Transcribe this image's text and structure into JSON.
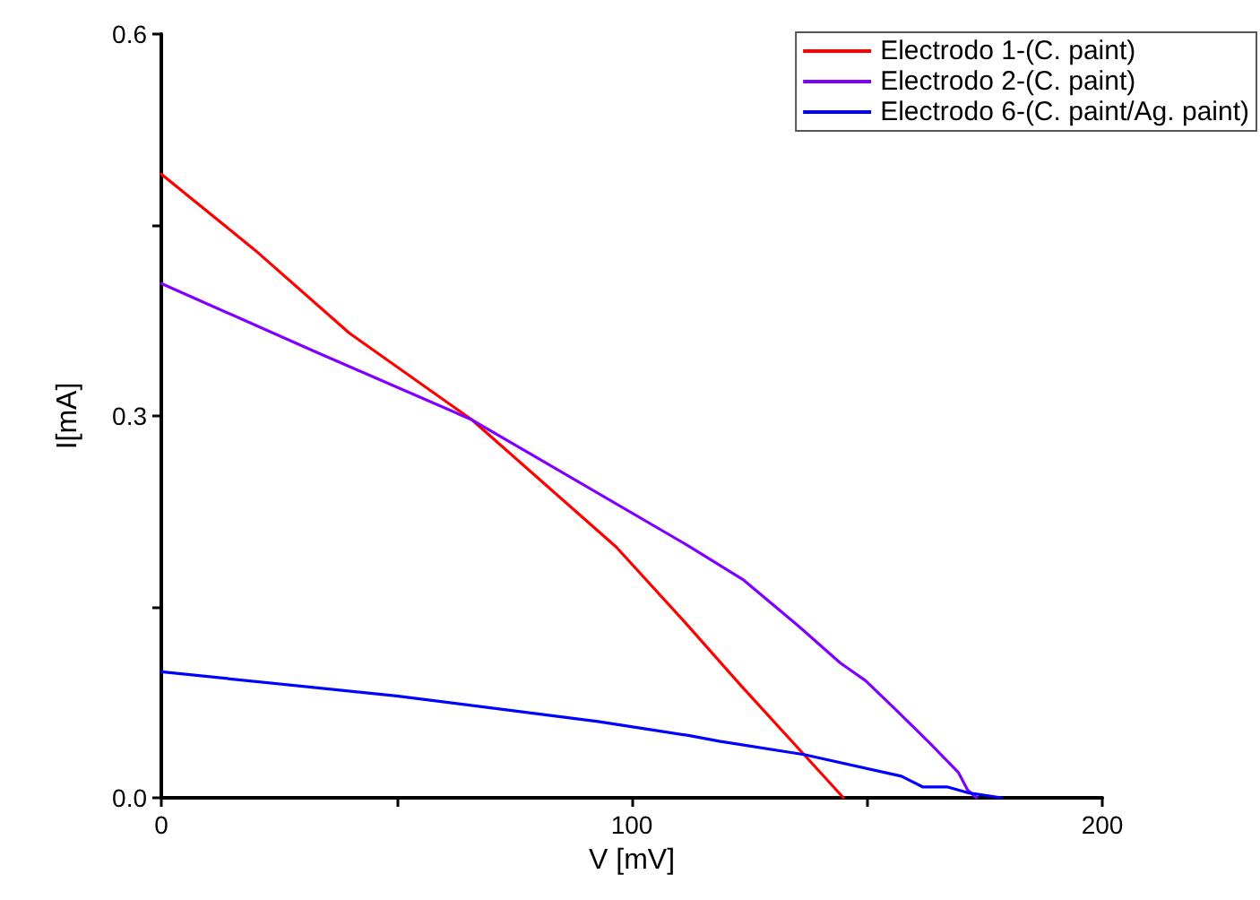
{
  "chart_data": {
    "type": "line",
    "xlabel": "V [mV]",
    "ylabel": "I[mA]",
    "xlim": [
      0,
      200
    ],
    "ylim": [
      0,
      0.6
    ],
    "xticks": [
      0,
      {
        "value": 50,
        "label": null
      },
      100,
      {
        "value": 150,
        "label": null
      },
      200
    ],
    "yticks": [
      {
        "value": 0,
        "label": "0.0"
      },
      {
        "value": 0.15,
        "label": null
      },
      0.3,
      {
        "value": 0.45,
        "label": null
      },
      0.6
    ],
    "grid": false,
    "legend": "top right",
    "marker": "none",
    "line_style": "solid",
    "series": [
      {
        "name": "Electrodo 1-(C. paint)",
        "color": "#ff0000",
        "x": [
          0,
          20,
          40,
          66,
          96.7,
          112,
          123,
          136.6,
          145
        ],
        "values": [
          0.49,
          0.43,
          0.365,
          0.297,
          0.197,
          0.135,
          0.089,
          0.034,
          0
        ]
      },
      {
        "name": "Electrodo 2-(C. paint)",
        "color": "#8000ff",
        "x": [
          0,
          33,
          66,
          112,
          123.8,
          135.4,
          144.3,
          149.7,
          155.9,
          163.6,
          169.4,
          171.4,
          173.3
        ],
        "values": [
          0.404,
          0.35,
          0.297,
          0.198,
          0.171,
          0.135,
          0.106,
          0.092,
          0.07,
          0.042,
          0.02,
          0.006,
          0
        ]
      },
      {
        "name": "Electrodo 6-(C. paint/Ag. paint)",
        "color": "#0000ff",
        "x": [
          0,
          50,
          92.8,
          112,
          118.6,
          136.6,
          157.3,
          161.8,
          167,
          171.4,
          178.6
        ],
        "values": [
          0.099,
          0.08,
          0.06,
          0.049,
          0.0445,
          0.034,
          0.017,
          0.0086,
          0.0086,
          0.004,
          0
        ]
      }
    ]
  }
}
